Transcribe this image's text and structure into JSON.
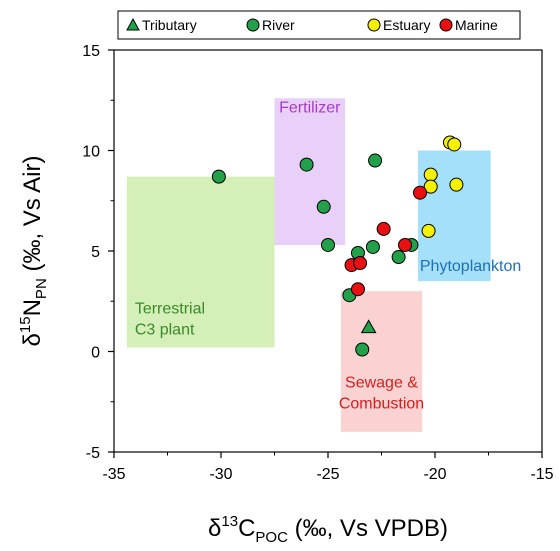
{
  "chart_data": {
    "type": "scatter",
    "xlabel": {
      "prefix": "δ",
      "sup": "13",
      "main": "C",
      "sub": "POC",
      "suffix": " (‰, Vs VPDB)"
    },
    "ylabel": {
      "prefix": "δ",
      "sup": "15",
      "main": "N",
      "sub": "PN",
      "suffix": " (‰, Vs Air)"
    },
    "xlim": [
      -35,
      -15
    ],
    "ylim": [
      -5,
      15
    ],
    "xticks": [
      -35,
      -30,
      -25,
      -20,
      -15
    ],
    "yticks": [
      -5,
      0,
      5,
      10,
      15
    ],
    "grid": false,
    "legend_position": "top",
    "regions": [
      {
        "label_lines": [
          "Terrestrial",
          "C3 plant"
        ],
        "x0": -34.4,
        "x1": -27.5,
        "y0": 0.2,
        "y1": 8.7,
        "fill": "#d5efb8",
        "label_color": "#3a8a2a"
      },
      {
        "label_lines": [
          "Fertilizer"
        ],
        "x0": -27.5,
        "x1": -24.2,
        "y0": 5.3,
        "y1": 12.6,
        "fill": "#e8d0f8",
        "label_color": "#a63cc6"
      },
      {
        "label_lines": [
          "Sewage &",
          "Combustion"
        ],
        "x0": -24.4,
        "x1": -20.6,
        "y0": -4.0,
        "y1": 3.0,
        "fill": "#fad2d2",
        "label_color": "#d42020"
      },
      {
        "label_lines": [
          "Phytoplankton"
        ],
        "x0": -20.8,
        "x1": -17.4,
        "y0": 3.5,
        "y1": 10.0,
        "fill": "#a5e0fa",
        "label_color": "#1f70b8"
      }
    ],
    "series": [
      {
        "name": "Tributary",
        "marker": "triangle",
        "color": "#22a04a",
        "points": [
          [
            -23.1,
            1.2
          ]
        ]
      },
      {
        "name": "River",
        "marker": "circle",
        "color": "#22a04a",
        "points": [
          [
            -30.1,
            8.7
          ],
          [
            -26.0,
            9.3
          ],
          [
            -25.2,
            7.2
          ],
          [
            -25.0,
            5.3
          ],
          [
            -22.8,
            9.5
          ],
          [
            -23.6,
            4.9
          ],
          [
            -22.9,
            5.2
          ],
          [
            -21.1,
            5.3
          ],
          [
            -21.7,
            4.7
          ],
          [
            -24.0,
            2.8
          ],
          [
            -23.4,
            0.1
          ]
        ]
      },
      {
        "name": "Estuary",
        "marker": "circle",
        "color": "#f5f000",
        "points": [
          [
            -19.3,
            10.4
          ],
          [
            -19.1,
            10.3
          ],
          [
            -20.2,
            8.8
          ],
          [
            -20.2,
            8.2
          ],
          [
            -19.0,
            8.3
          ],
          [
            -20.3,
            6.0
          ]
        ]
      },
      {
        "name": "Marine",
        "marker": "circle",
        "color": "#e81010",
        "points": [
          [
            -20.7,
            7.9
          ],
          [
            -22.4,
            6.1
          ],
          [
            -21.4,
            5.3
          ],
          [
            -23.9,
            4.3
          ],
          [
            -23.5,
            4.4
          ],
          [
            -23.6,
            3.1
          ]
        ]
      }
    ]
  }
}
